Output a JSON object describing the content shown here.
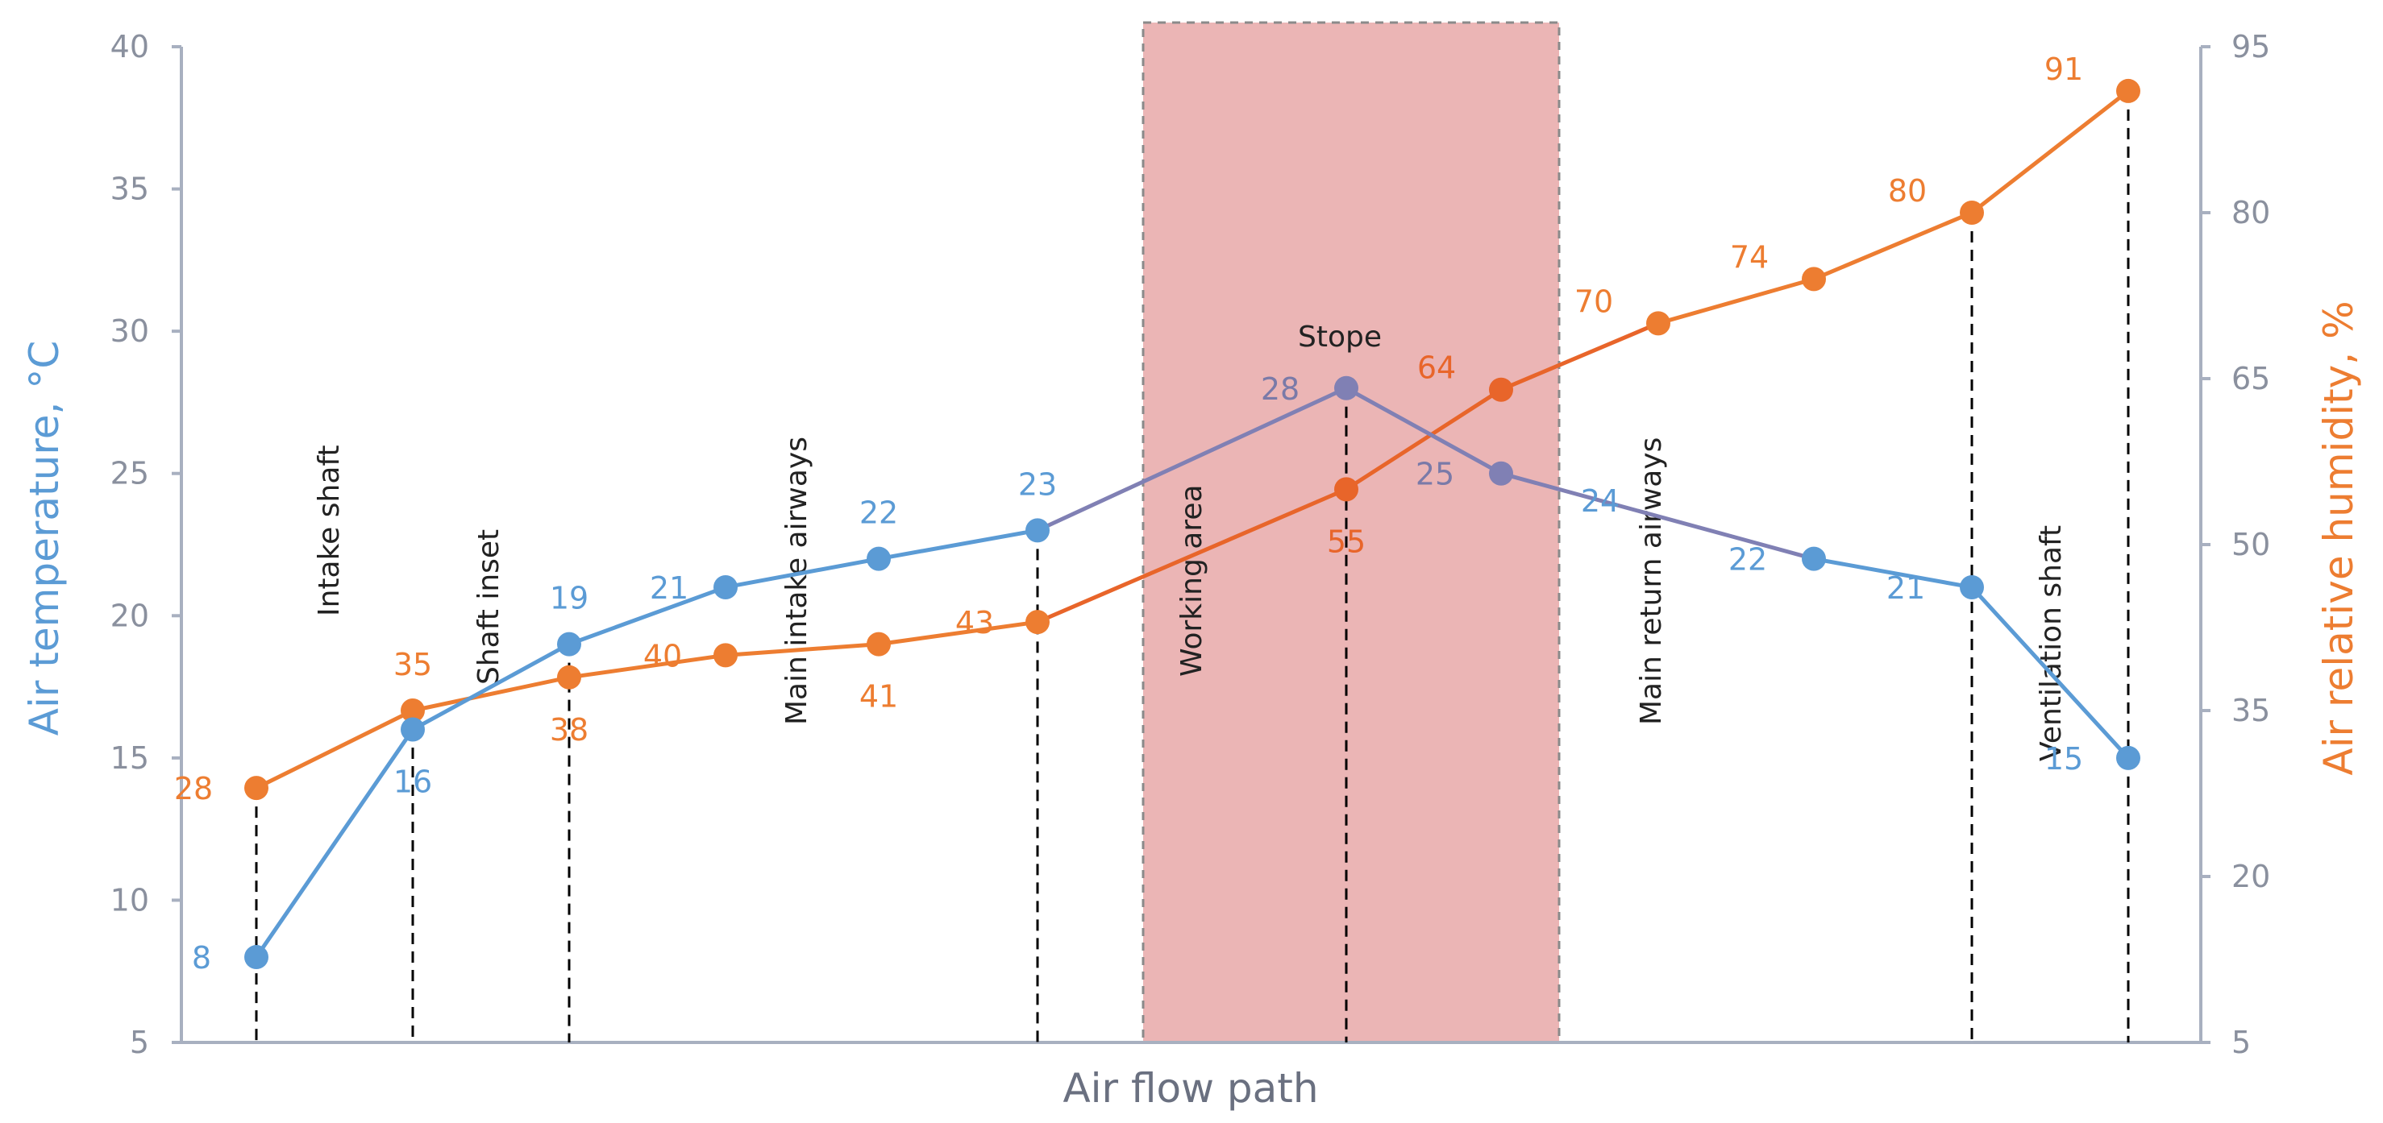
{
  "chart_data": {
    "type": "line",
    "xlabel": "Air flow path",
    "ylabel_left": "Air temperature, °C",
    "ylabel_right": "Air relative humidity, %",
    "ylim_left": [
      5,
      40
    ],
    "yticks_left": [
      "5",
      "10",
      "15",
      "20",
      "25",
      "30",
      "35",
      "40"
    ],
    "ylim_right": [
      5,
      95
    ],
    "yticks_right": [
      "5",
      "20",
      "35",
      "50",
      "65",
      "80",
      "95"
    ],
    "grid": false,
    "points": 13,
    "series": [
      {
        "name": "Air temperature",
        "axis": "left",
        "color": "#5b9bd5",
        "values": [
          8,
          16,
          19,
          21,
          22,
          23,
          null,
          28,
          25,
          null,
          22,
          21,
          15
        ],
        "labels": [
          "8",
          "16",
          "19",
          "21",
          "22",
          "23",
          null,
          "28",
          "25",
          "24",
          "22",
          "21",
          "15"
        ]
      },
      {
        "name": "Air relative humidity",
        "axis": "right",
        "color": "#ed7d31",
        "values": [
          28,
          35,
          38,
          40,
          41,
          43,
          null,
          55,
          64,
          70,
          74,
          80,
          91
        ],
        "labels": [
          "28",
          "35",
          "38",
          "40",
          "41",
          "43",
          null,
          "55",
          "64",
          "70",
          "74",
          "80",
          "91"
        ]
      }
    ],
    "highlight_region": {
      "label": "Working area",
      "color": "#ebb5b5"
    },
    "annotations": [
      "Intake shaft",
      "Shaft inset",
      "Main intake airways",
      "Working area",
      "Stope",
      "Main return airways",
      "Ventilation shaft"
    ]
  }
}
